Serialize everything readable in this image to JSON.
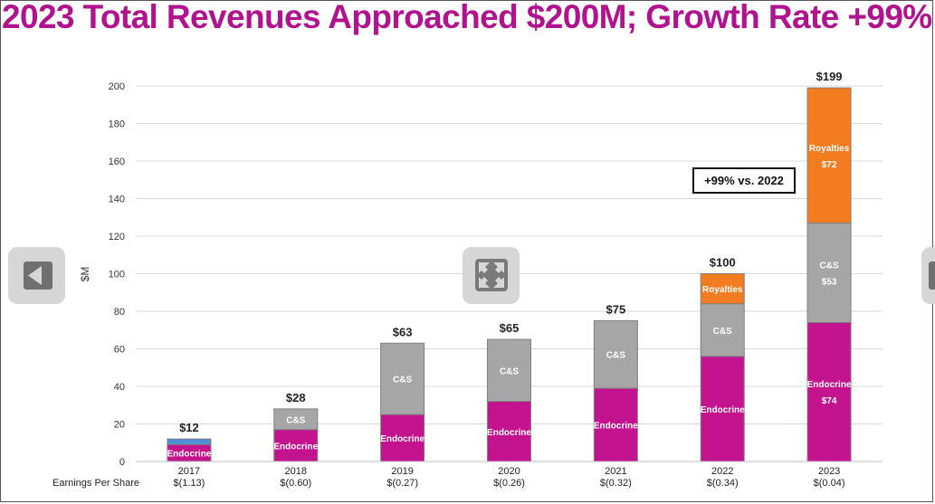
{
  "title": "2023 Total Revenues Approached $200M; Growth Rate +99%",
  "callout": "+99% vs. 2022",
  "eps_label": "Earnings Per Share",
  "colors": {
    "title": "#b0138d",
    "endocrine": "#c3138f",
    "cs": "#a6a6a6",
    "royalties": "#f47c20",
    "other_2017": "#4f8fd6",
    "grid": "#d9d9d9"
  },
  "controls": {
    "prev": "arrow-left-icon",
    "expand": "expand-icon",
    "next": "arrow-right-icon"
  },
  "chart_data": {
    "type": "bar",
    "stacked": true,
    "title": "2023 Total Revenues Approached $200M; Growth Rate +99%",
    "xlabel": "",
    "ylabel": "$M",
    "ylim": [
      0,
      200
    ],
    "yticks": [
      0,
      20,
      40,
      60,
      80,
      100,
      120,
      140,
      160,
      180,
      200
    ],
    "grid": true,
    "categories": [
      "2017",
      "2018",
      "2019",
      "2020",
      "2021",
      "2022",
      "2023"
    ],
    "series": [
      {
        "name": "Endocrine",
        "color_key": "endocrine",
        "values": [
          9,
          17,
          25,
          32,
          39,
          56,
          74
        ],
        "labels": [
          "Endocrine",
          "Endocrine",
          "Endocrine",
          "Endocrine",
          "Endocrine",
          "Endocrine",
          "Endocrine"
        ],
        "value_labels": [
          null,
          null,
          null,
          null,
          null,
          null,
          "$74"
        ]
      },
      {
        "name": "Other",
        "color_key": "other_2017",
        "values": [
          3,
          0,
          0,
          0,
          0,
          0,
          0
        ],
        "labels": [
          null,
          null,
          null,
          null,
          null,
          null,
          null
        ],
        "value_labels": [
          null,
          null,
          null,
          null,
          null,
          null,
          null
        ]
      },
      {
        "name": "C&S",
        "color_key": "cs",
        "values": [
          0,
          11,
          38,
          33,
          36,
          28,
          53
        ],
        "labels": [
          null,
          "C&S",
          "C&S",
          "C&S",
          "C&S",
          "C&S",
          "C&S"
        ],
        "value_labels": [
          null,
          null,
          null,
          null,
          null,
          null,
          "$53"
        ]
      },
      {
        "name": "Royalties",
        "color_key": "royalties",
        "values": [
          0,
          0,
          0,
          0,
          0,
          16,
          72
        ],
        "labels": [
          null,
          null,
          null,
          null,
          null,
          "Royalties",
          "Royalties"
        ],
        "value_labels": [
          null,
          null,
          null,
          null,
          null,
          null,
          "$72"
        ]
      }
    ],
    "totals": [
      12,
      28,
      63,
      65,
      75,
      100,
      199
    ],
    "total_labels": [
      "$12",
      "$28",
      "$63",
      "$65",
      "$75",
      "$100",
      "$199"
    ],
    "eps": [
      "$(1.13)",
      "$(0.60)",
      "$(0.27)",
      "$(0.26)",
      "$(0.32)",
      "$(0.34)",
      "$(0.04)"
    ]
  }
}
